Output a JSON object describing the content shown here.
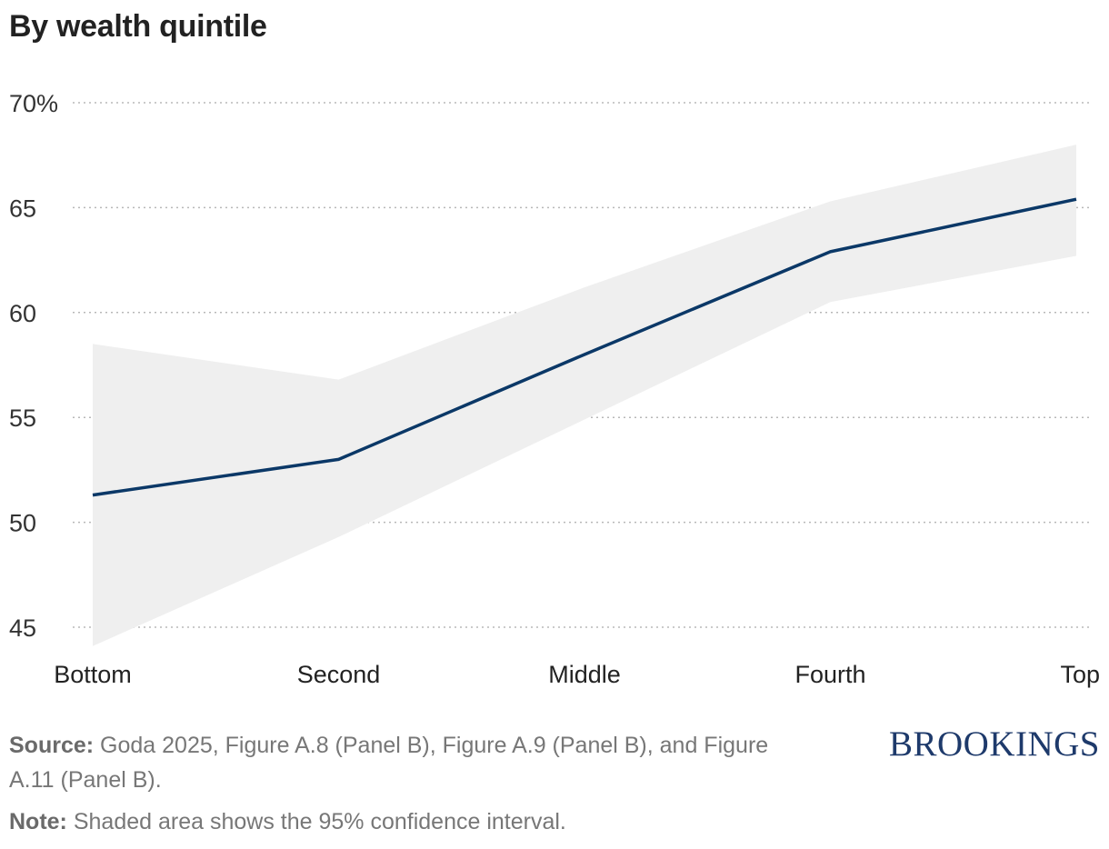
{
  "title": "By wealth quintile",
  "chart_data": {
    "type": "line",
    "categories": [
      "Bottom",
      "Second",
      "Middle",
      "Fourth",
      "Top"
    ],
    "series": [
      {
        "values": [
          51.3,
          53.0,
          58.0,
          62.9,
          65.4
        ]
      }
    ],
    "ci_lower": [
      44.1,
      49.3,
      54.9,
      60.5,
      62.7
    ],
    "ci_upper": [
      58.5,
      56.8,
      61.2,
      65.3,
      68.0
    ],
    "yticks": [
      45,
      50,
      55,
      60,
      65,
      70
    ],
    "ytick_labels": [
      "45",
      "50",
      "55",
      "60",
      "65",
      "70%"
    ],
    "ylim": [
      45,
      70
    ],
    "grid": true,
    "line_color": "#0b3867",
    "band_color": "#efefef"
  },
  "source_label": "Source:",
  "source_text": " Goda 2025, Figure A.8 (Panel B), Figure A.9 (Panel B), and Figure A.11 (Panel B).",
  "note_label": "Note:",
  "note_text": " Shaded area shows the 95% confidence interval.",
  "logo_text": "BROOKINGS"
}
